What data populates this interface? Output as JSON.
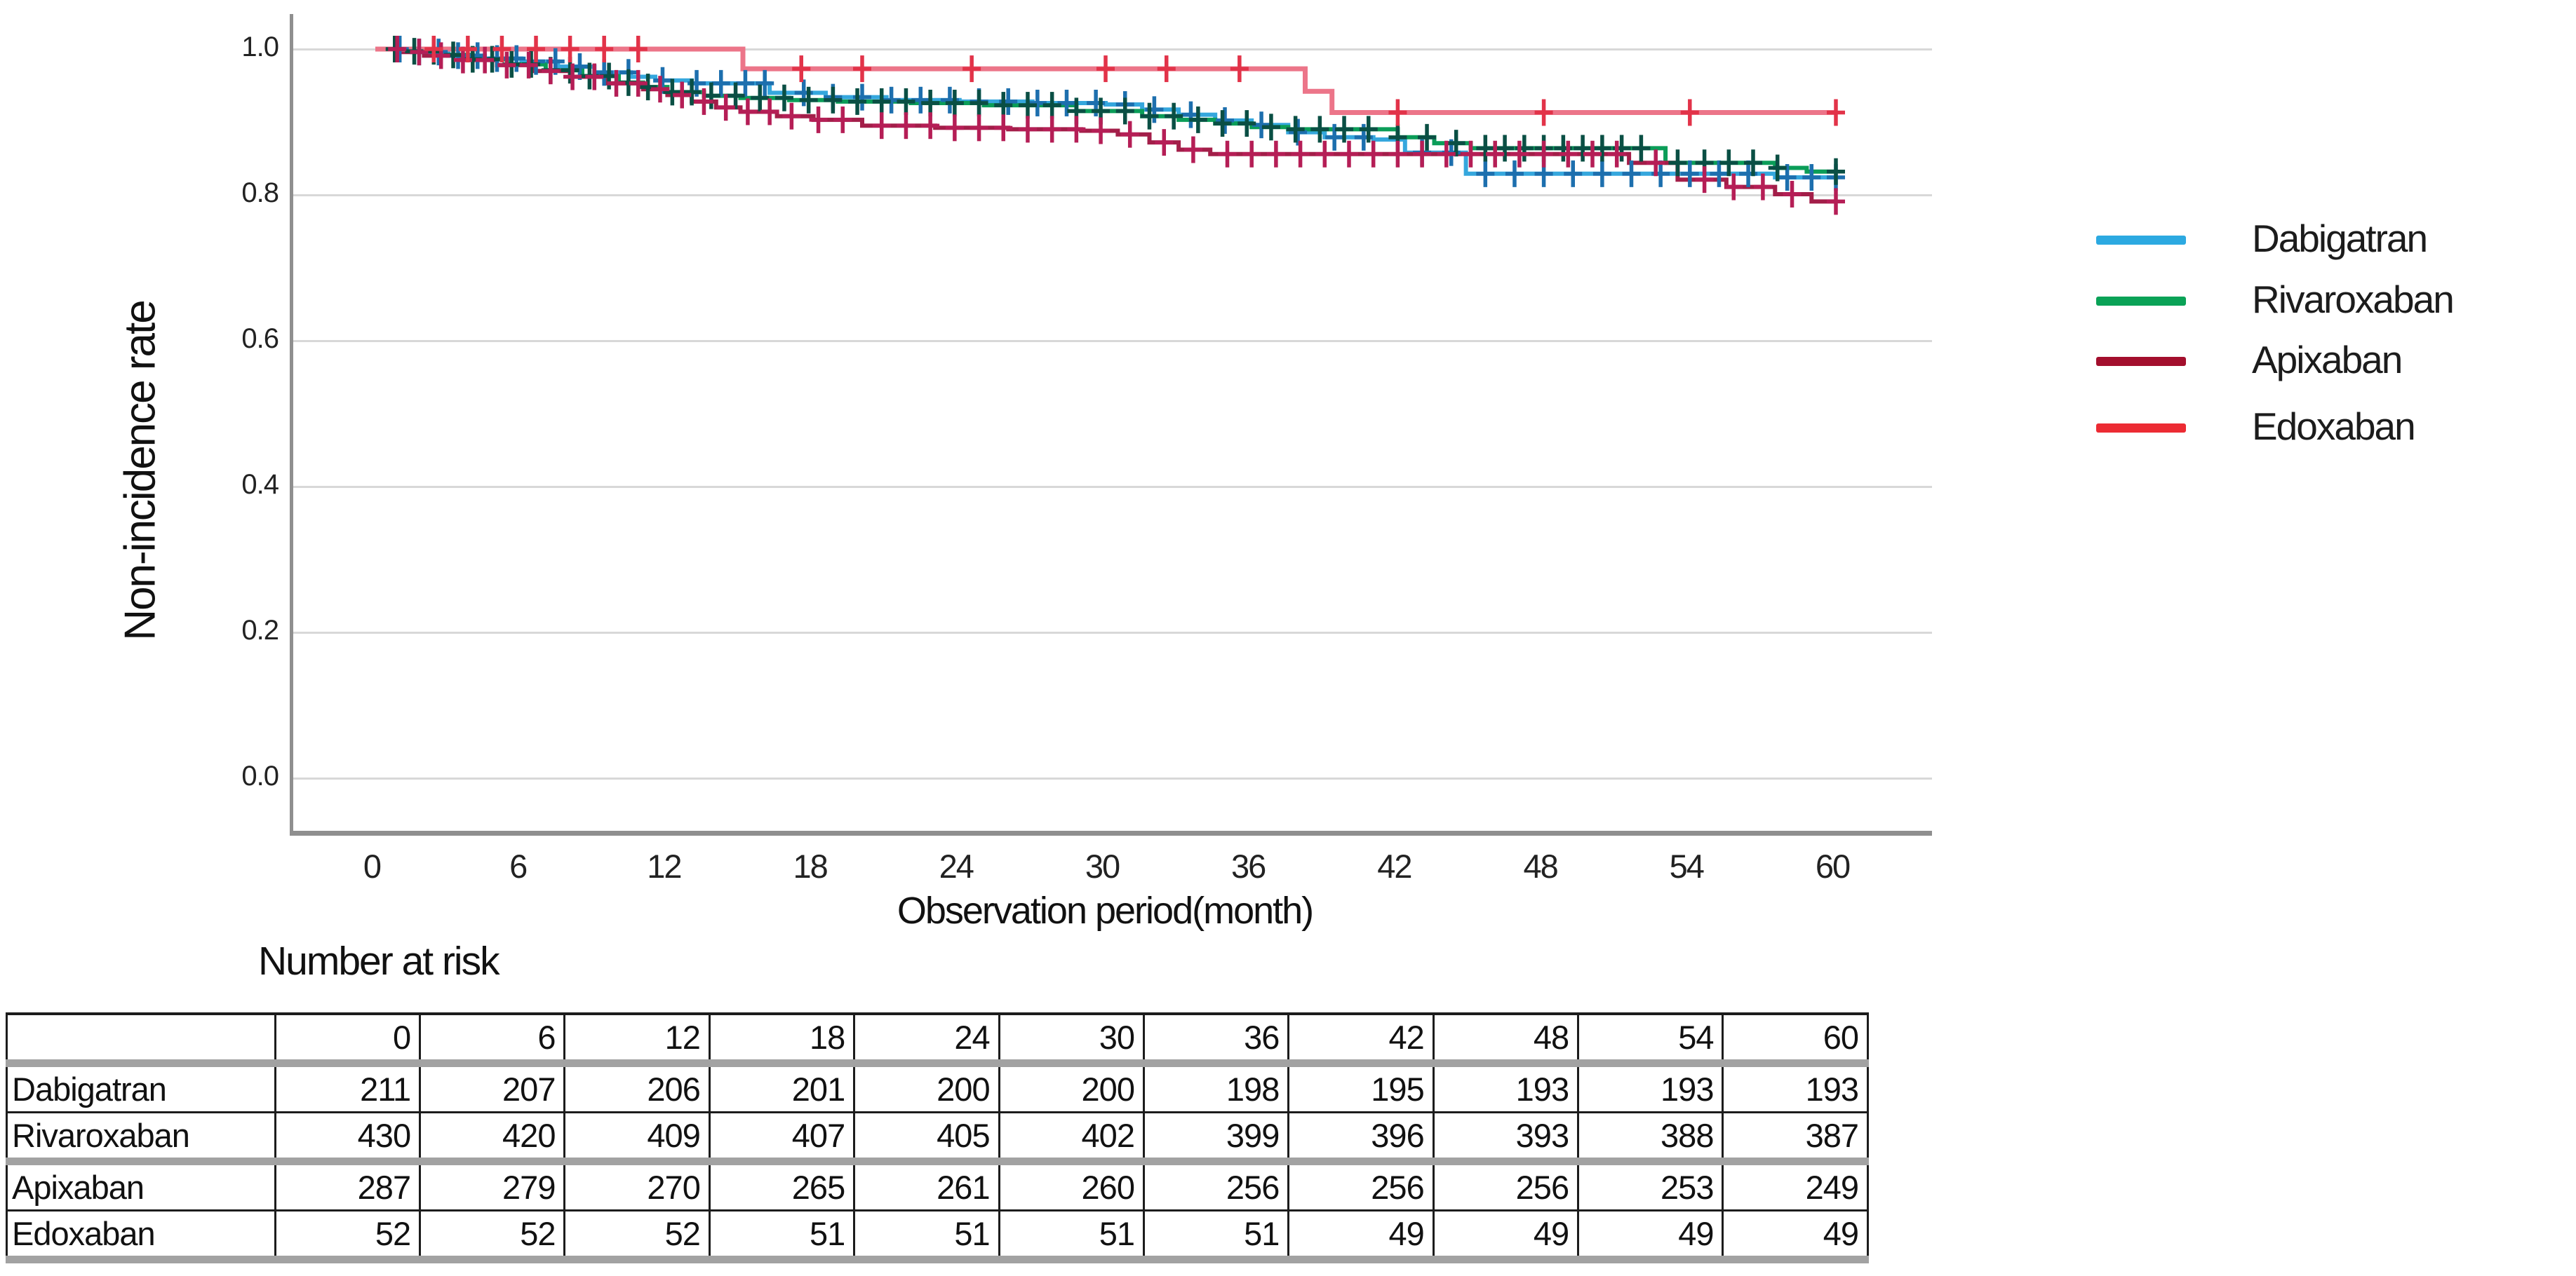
{
  "chart": {
    "ylabel": "Non-incidence rate",
    "xlabel": "Observation period(month)",
    "y_tick_labels": [
      "1.0",
      "0.8",
      "0.6",
      "0.4",
      "0.2",
      "0.0"
    ],
    "x_tick_labels": [
      "0",
      "6",
      "12",
      "18",
      "24",
      "30",
      "36",
      "42",
      "48",
      "54",
      "60"
    ]
  },
  "legend": {
    "items": [
      {
        "label": "Dabigatran",
        "color": "#2CA9E1"
      },
      {
        "label": "Rivaroxaban",
        "color": "#0AA257"
      },
      {
        "label": "Apixaban",
        "color": "#A30F2D"
      },
      {
        "label": "Edoxaban",
        "color": "#EC2B33"
      }
    ]
  },
  "risk_table": {
    "title": "Number at risk",
    "columns": [
      "",
      "0",
      "6",
      "12",
      "18",
      "24",
      "30",
      "36",
      "42",
      "48",
      "54",
      "60"
    ],
    "rows": [
      {
        "label": "Dabigatran",
        "values": [
          211,
          207,
          206,
          201,
          200,
          200,
          198,
          195,
          193,
          193,
          193
        ]
      },
      {
        "label": "Rivaroxaban",
        "values": [
          430,
          420,
          409,
          407,
          405,
          402,
          399,
          396,
          393,
          388,
          387
        ]
      },
      {
        "label": "Apixaban",
        "values": [
          287,
          279,
          270,
          265,
          261,
          260,
          256,
          256,
          256,
          253,
          249
        ]
      },
      {
        "label": "Edoxaban",
        "values": [
          52,
          52,
          52,
          51,
          51,
          51,
          51,
          49,
          49,
          49,
          49
        ]
      }
    ]
  },
  "chart_data": {
    "type": "line",
    "subtype": "kaplan-meier-step",
    "title": "",
    "xlabel": "Observation period(month)",
    "ylabel": "Non-incidence rate",
    "xlim": [
      0,
      60
    ],
    "ylim": [
      0.0,
      1.0
    ],
    "x_ticks": [
      0,
      6,
      12,
      18,
      24,
      30,
      36,
      42,
      48,
      54,
      60
    ],
    "y_ticks": [
      1.0,
      0.8,
      0.6,
      0.4,
      0.2,
      0.0
    ],
    "grid": "horizontal-only",
    "legend_position": "right",
    "gridline_color": "#d8d8d8",
    "axis_color": "#8f8f8f",
    "series": [
      {
        "name": "Dabigatran",
        "color": "#35A7DD",
        "censor_color": "#1d6fae",
        "line_width": 6,
        "steps": [
          [
            0,
            1
          ],
          [
            1.5,
            0.996
          ],
          [
            3,
            0.991
          ],
          [
            4.5,
            0.987
          ],
          [
            6,
            0.983
          ],
          [
            7.5,
            0.976
          ],
          [
            9,
            0.968
          ],
          [
            10.5,
            0.962
          ],
          [
            11.5,
            0.957
          ],
          [
            13,
            0.953
          ],
          [
            16.2,
            0.94
          ],
          [
            18.5,
            0.934
          ],
          [
            21,
            0.93
          ],
          [
            24,
            0.928
          ],
          [
            27,
            0.926
          ],
          [
            30,
            0.924
          ],
          [
            31.5,
            0.917
          ],
          [
            33,
            0.91
          ],
          [
            34.5,
            0.902
          ],
          [
            36,
            0.896
          ],
          [
            37.5,
            0.886
          ],
          [
            39,
            0.879
          ],
          [
            41,
            0.876
          ],
          [
            42.3,
            0.858
          ],
          [
            44.8,
            0.829
          ],
          [
            57.5,
            0.824
          ],
          [
            60,
            0.824
          ]
        ],
        "censor_months": [
          1,
          1.8,
          2.6,
          3.4,
          4.2,
          5,
          5.8,
          6.6,
          7.4,
          8.4,
          9.4,
          10.4,
          11.8,
          13.2,
          14.2,
          15.2,
          16,
          17.6,
          18.8,
          20,
          21.2,
          22.4,
          23.6,
          24.8,
          26,
          27.2,
          28.4,
          29.6,
          30.8,
          32,
          33.5,
          34.9,
          36.4,
          37.9,
          39.4,
          40.6,
          43,
          44.2,
          45.6,
          46.8,
          48,
          49.2,
          50.4,
          51.6,
          52.8,
          54,
          55.2,
          56.4,
          58,
          59,
          60
        ]
      },
      {
        "name": "Rivaroxaban",
        "color": "#0B9D58",
        "censor_color": "#0a4f44",
        "line_width": 6,
        "steps": [
          [
            0,
            1
          ],
          [
            1,
            0.997
          ],
          [
            2.5,
            0.992
          ],
          [
            4,
            0.986
          ],
          [
            5.5,
            0.979
          ],
          [
            7,
            0.971
          ],
          [
            8.5,
            0.963
          ],
          [
            10,
            0.954
          ],
          [
            11,
            0.948
          ],
          [
            12,
            0.941
          ],
          [
            13.5,
            0.936
          ],
          [
            15,
            0.933
          ],
          [
            17,
            0.93
          ],
          [
            19,
            0.928
          ],
          [
            22,
            0.926
          ],
          [
            25,
            0.923
          ],
          [
            28.8,
            0.915
          ],
          [
            31.5,
            0.908
          ],
          [
            33,
            0.903
          ],
          [
            34.5,
            0.898
          ],
          [
            36,
            0.893
          ],
          [
            37.5,
            0.89
          ],
          [
            42,
            0.879
          ],
          [
            43.5,
            0.871
          ],
          [
            45,
            0.864
          ],
          [
            53,
            0.844
          ],
          [
            57.5,
            0.837
          ],
          [
            58.8,
            0.832
          ],
          [
            60,
            0.832
          ]
        ],
        "censor_months": [
          0.8,
          1.6,
          2.4,
          3.2,
          4,
          4.8,
          5.6,
          6.4,
          7.2,
          8,
          8.8,
          9.6,
          10.4,
          11.2,
          12.2,
          13,
          13.8,
          14.8,
          15.8,
          16.8,
          17.8,
          18.8,
          19.8,
          20.8,
          21.8,
          22.8,
          23.8,
          24.8,
          25.8,
          26.8,
          27.8,
          28.8,
          29.8,
          30.8,
          31.8,
          32.8,
          33.8,
          34.8,
          35.8,
          36.8,
          37.8,
          38.8,
          39.8,
          40.8,
          42,
          43.2,
          44.4,
          45.6,
          46.4,
          47.2,
          48,
          48.8,
          49.6,
          50.4,
          51.2,
          52,
          53.5,
          54.6,
          55.6,
          56.6,
          57.6,
          60
        ]
      },
      {
        "name": "Apixaban",
        "color": "#A31E49",
        "censor_color": "#b51e56",
        "line_width": 6,
        "steps": [
          [
            0,
            1
          ],
          [
            1,
            0.996
          ],
          [
            2,
            0.991
          ],
          [
            3.5,
            0.985
          ],
          [
            5,
            0.978
          ],
          [
            6.5,
            0.97
          ],
          [
            8,
            0.962
          ],
          [
            9.5,
            0.953
          ],
          [
            11,
            0.945
          ],
          [
            12,
            0.937
          ],
          [
            13,
            0.928
          ],
          [
            14,
            0.92
          ],
          [
            15,
            0.914
          ],
          [
            16.5,
            0.908
          ],
          [
            18,
            0.903
          ],
          [
            20,
            0.895
          ],
          [
            23,
            0.892
          ],
          [
            26,
            0.89
          ],
          [
            29,
            0.888
          ],
          [
            30.5,
            0.883
          ],
          [
            31.8,
            0.872
          ],
          [
            33,
            0.862
          ],
          [
            34.3,
            0.856
          ],
          [
            51.5,
            0.844
          ],
          [
            53.5,
            0.821
          ],
          [
            55.5,
            0.811
          ],
          [
            57.5,
            0.801
          ],
          [
            59,
            0.791
          ],
          [
            60,
            0.791
          ]
        ],
        "censor_months": [
          0.9,
          1.8,
          2.7,
          3.6,
          4.5,
          5.4,
          6.3,
          7.2,
          8.1,
          9,
          9.9,
          10.8,
          11.7,
          12.6,
          13.5,
          14.4,
          15.3,
          16.2,
          17.1,
          18.2,
          19.2,
          20.8,
          21.8,
          22.8,
          23.8,
          24.8,
          25.8,
          26.8,
          27.8,
          28.8,
          29.8,
          31,
          32.4,
          33.6,
          35,
          36,
          37,
          38,
          39,
          40,
          41,
          42,
          43,
          44,
          45,
          46,
          47,
          48,
          49,
          50,
          51,
          52.6,
          54.6,
          55.8,
          57,
          58.2,
          60
        ]
      },
      {
        "name": "Edoxaban",
        "color": "#EC7589",
        "censor_color": "#E23349",
        "line_width": 7,
        "steps": [
          [
            0,
            1
          ],
          [
            15.1,
            0.973
          ],
          [
            38.2,
            0.942
          ],
          [
            39.3,
            0.913
          ],
          [
            60,
            0.913
          ]
        ],
        "censor_months": [
          2.4,
          3.8,
          5.2,
          6.6,
          8,
          9.4,
          10.8,
          17.5,
          20,
          24.5,
          30,
          32.5,
          35.5,
          42,
          48,
          54,
          60
        ]
      }
    ]
  }
}
